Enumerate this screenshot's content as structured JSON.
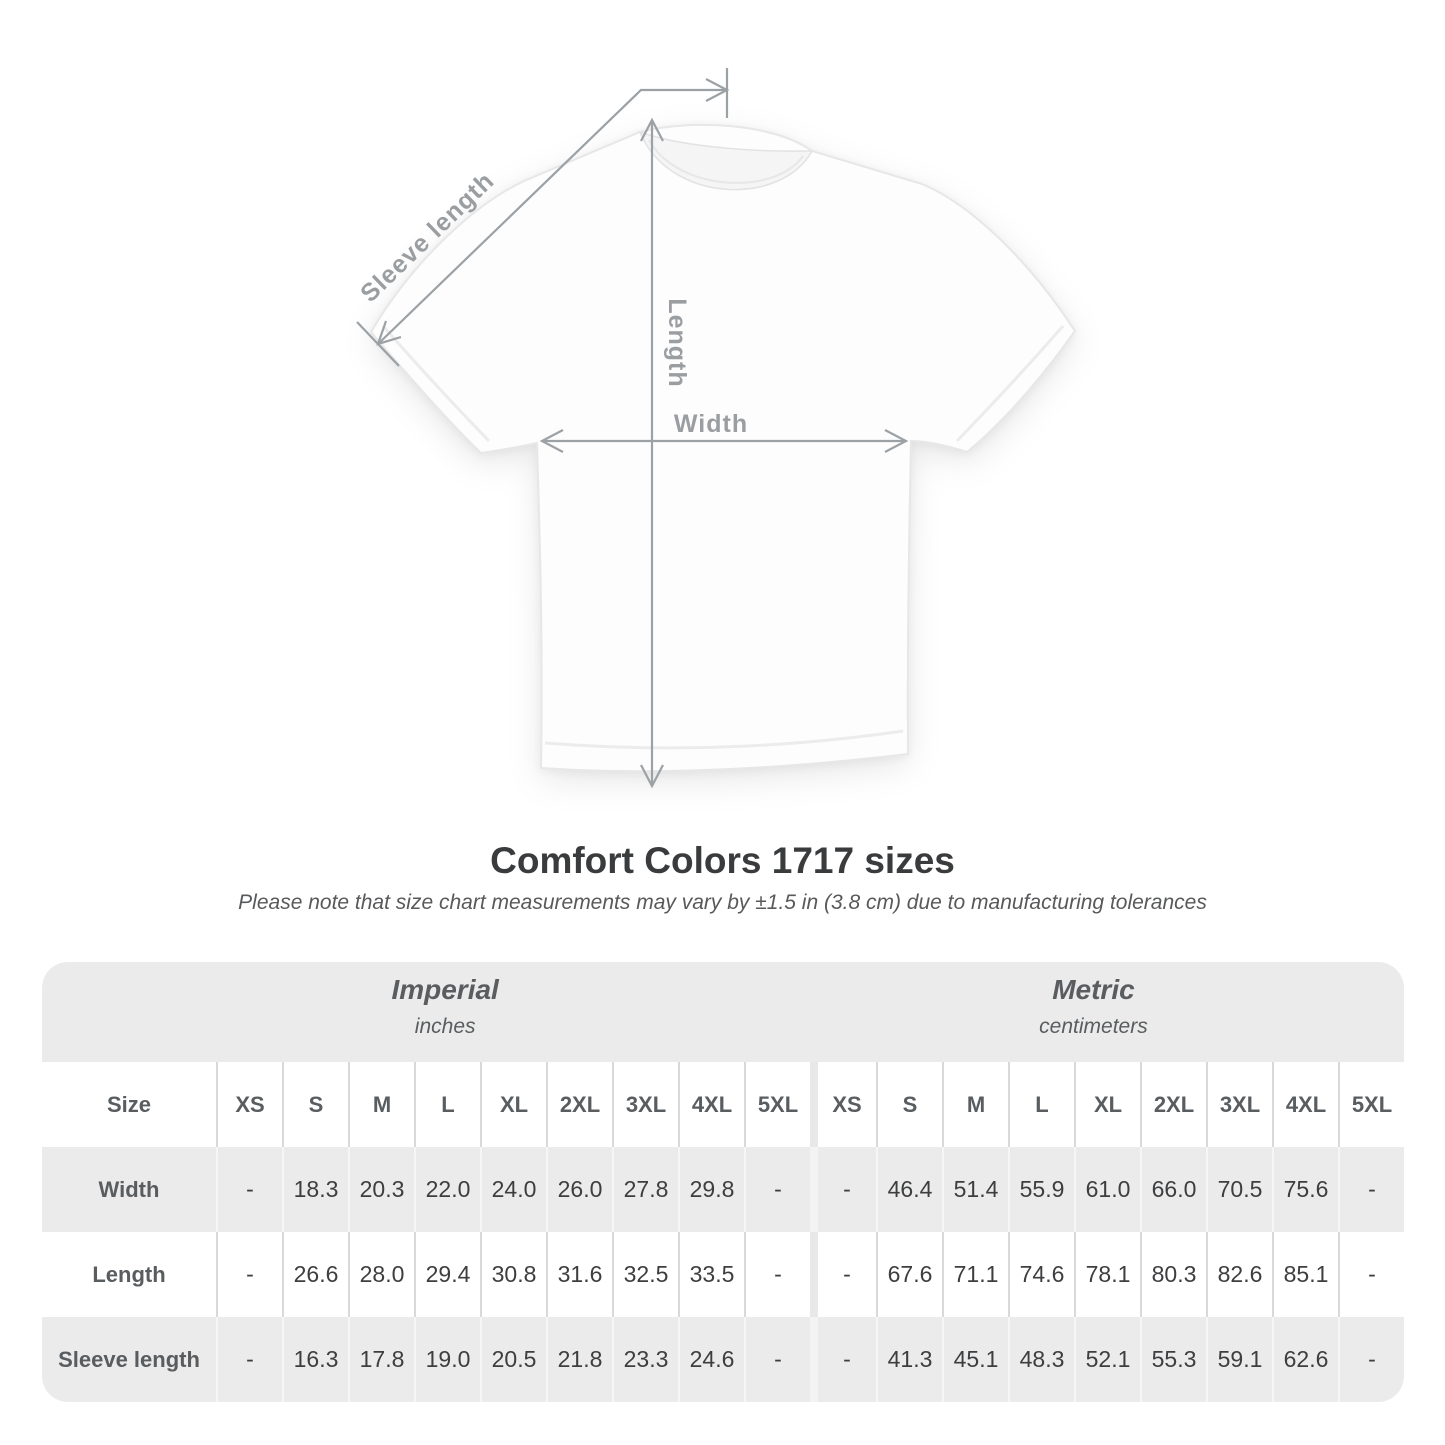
{
  "header": {
    "title": "Comfort Colors 1717 sizes",
    "subtitle": "Please note that size chart measurements may vary by ±1.5 in (3.8 cm) due to manufacturing tolerances"
  },
  "diagram": {
    "sleeve_length": "Sleeve length",
    "length": "Length",
    "width": "Width"
  },
  "chart_data": {
    "type": "table",
    "title": "Comfort Colors 1717 sizes",
    "size_column_header": "Size",
    "groups": [
      {
        "name": "Imperial",
        "unit": "inches"
      },
      {
        "name": "Metric",
        "unit": "centimeters"
      }
    ],
    "sizes": [
      "XS",
      "S",
      "M",
      "L",
      "XL",
      "2XL",
      "3XL",
      "4XL",
      "5XL"
    ],
    "rows": [
      {
        "label": "Width",
        "imperial": [
          "-",
          "18.3",
          "20.3",
          "22.0",
          "24.0",
          "26.0",
          "27.8",
          "29.8",
          "-"
        ],
        "metric": [
          "-",
          "46.4",
          "51.4",
          "55.9",
          "61.0",
          "66.0",
          "70.5",
          "75.6",
          "-"
        ]
      },
      {
        "label": "Length",
        "imperial": [
          "-",
          "26.6",
          "28.0",
          "29.4",
          "30.8",
          "31.6",
          "32.5",
          "33.5",
          "-"
        ],
        "metric": [
          "-",
          "67.6",
          "71.1",
          "74.6",
          "78.1",
          "80.3",
          "82.6",
          "85.1",
          "-"
        ]
      },
      {
        "label": "Sleeve length",
        "imperial": [
          "-",
          "16.3",
          "17.8",
          "19.0",
          "20.5",
          "21.8",
          "23.3",
          "24.6",
          "-"
        ],
        "metric": [
          "-",
          "41.3",
          "45.1",
          "48.3",
          "52.1",
          "55.3",
          "59.1",
          "62.6",
          "-"
        ]
      }
    ]
  }
}
